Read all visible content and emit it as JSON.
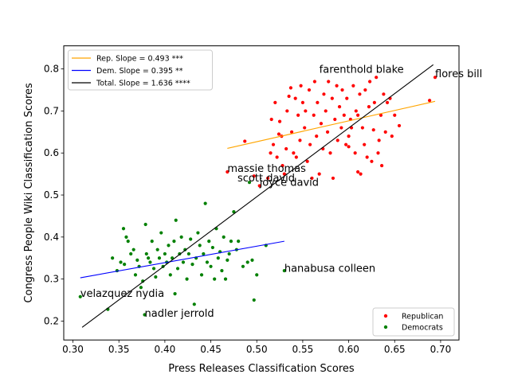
{
  "chart_data": {
    "type": "scatter",
    "title": "",
    "xlabel": "Press Releases Classification Scores",
    "ylabel": "Congress People Wiki Classification Scores",
    "xlim": [
      0.29,
      0.72
    ],
    "ylim": [
      0.155,
      0.855
    ],
    "xticks": [
      0.3,
      0.35,
      0.4,
      0.45,
      0.5,
      0.55,
      0.6,
      0.65,
      0.7
    ],
    "xtick_labels": [
      "0.30",
      "0.35",
      "0.40",
      "0.45",
      "0.50",
      "0.55",
      "0.60",
      "0.65",
      "0.70"
    ],
    "yticks": [
      0.2,
      0.3,
      0.4,
      0.5,
      0.6,
      0.7,
      0.8
    ],
    "ytick_labels": [
      "0.2",
      "0.3",
      "0.4",
      "0.5",
      "0.6",
      "0.7",
      "0.8"
    ],
    "grid": false,
    "series": [
      {
        "name": "Republican",
        "color": "#ff0000",
        "points": [
          [
            0.468,
            0.555
          ],
          [
            0.487,
            0.628
          ],
          [
            0.497,
            0.545
          ],
          [
            0.503,
            0.522
          ],
          [
            0.512,
            0.54
          ],
          [
            0.515,
            0.6
          ],
          [
            0.516,
            0.68
          ],
          [
            0.518,
            0.62
          ],
          [
            0.52,
            0.72
          ],
          [
            0.522,
            0.59
          ],
          [
            0.524,
            0.645
          ],
          [
            0.525,
            0.675
          ],
          [
            0.527,
            0.64
          ],
          [
            0.528,
            0.57
          ],
          [
            0.53,
            0.55
          ],
          [
            0.532,
            0.61
          ],
          [
            0.533,
            0.7
          ],
          [
            0.535,
            0.735
          ],
          [
            0.537,
            0.755
          ],
          [
            0.538,
            0.65
          ],
          [
            0.54,
            0.6
          ],
          [
            0.542,
            0.73
          ],
          [
            0.543,
            0.59
          ],
          [
            0.545,
            0.69
          ],
          [
            0.547,
            0.63
          ],
          [
            0.548,
            0.76
          ],
          [
            0.55,
            0.72
          ],
          [
            0.552,
            0.66
          ],
          [
            0.553,
            0.7
          ],
          [
            0.555,
            0.58
          ],
          [
            0.557,
            0.75
          ],
          [
            0.558,
            0.62
          ],
          [
            0.56,
            0.54
          ],
          [
            0.562,
            0.69
          ],
          [
            0.563,
            0.77
          ],
          [
            0.565,
            0.64
          ],
          [
            0.566,
            0.72
          ],
          [
            0.568,
            0.55
          ],
          [
            0.57,
            0.67
          ],
          [
            0.572,
            0.61
          ],
          [
            0.573,
            0.74
          ],
          [
            0.575,
            0.7
          ],
          [
            0.577,
            0.65
          ],
          [
            0.578,
            0.77
          ],
          [
            0.58,
            0.6
          ],
          [
            0.582,
            0.73
          ],
          [
            0.583,
            0.54
          ],
          [
            0.585,
            0.68
          ],
          [
            0.587,
            0.76
          ],
          [
            0.588,
            0.63
          ],
          [
            0.59,
            0.71
          ],
          [
            0.592,
            0.66
          ],
          [
            0.593,
            0.75
          ],
          [
            0.595,
            0.69
          ],
          [
            0.597,
            0.62
          ],
          [
            0.598,
            0.73
          ],
          [
            0.6,
            0.615
          ],
          [
            0.6,
            0.64
          ],
          [
            0.602,
            0.68
          ],
          [
            0.603,
            0.66
          ],
          [
            0.605,
            0.76
          ],
          [
            0.607,
            0.6
          ],
          [
            0.608,
            0.7
          ],
          [
            0.61,
            0.555
          ],
          [
            0.61,
            0.69
          ],
          [
            0.612,
            0.74
          ],
          [
            0.613,
            0.55
          ],
          [
            0.615,
            0.66
          ],
          [
            0.617,
            0.62
          ],
          [
            0.618,
            0.75
          ],
          [
            0.62,
            0.59
          ],
          [
            0.622,
            0.71
          ],
          [
            0.623,
            0.77
          ],
          [
            0.625,
            0.58
          ],
          [
            0.627,
            0.655
          ],
          [
            0.628,
            0.72
          ],
          [
            0.63,
            0.78
          ],
          [
            0.632,
            0.6
          ],
          [
            0.633,
            0.63
          ],
          [
            0.635,
            0.69
          ],
          [
            0.636,
            0.57
          ],
          [
            0.638,
            0.74
          ],
          [
            0.64,
            0.65
          ],
          [
            0.642,
            0.72
          ],
          [
            0.645,
            0.73
          ],
          [
            0.647,
            0.64
          ],
          [
            0.65,
            0.69
          ],
          [
            0.655,
            0.665
          ],
          [
            0.688,
            0.725
          ],
          [
            0.694,
            0.78
          ]
        ]
      },
      {
        "name": "Democrats",
        "color": "#008000",
        "points": [
          [
            0.308,
            0.258
          ],
          [
            0.338,
            0.228
          ],
          [
            0.343,
            0.35
          ],
          [
            0.348,
            0.32
          ],
          [
            0.352,
            0.34
          ],
          [
            0.355,
            0.42
          ],
          [
            0.356,
            0.335
          ],
          [
            0.358,
            0.4
          ],
          [
            0.36,
            0.39
          ],
          [
            0.363,
            0.36
          ],
          [
            0.366,
            0.37
          ],
          [
            0.368,
            0.31
          ],
          [
            0.37,
            0.345
          ],
          [
            0.372,
            0.33
          ],
          [
            0.374,
            0.28
          ],
          [
            0.376,
            0.295
          ],
          [
            0.378,
            0.215
          ],
          [
            0.379,
            0.43
          ],
          [
            0.38,
            0.36
          ],
          [
            0.382,
            0.35
          ],
          [
            0.384,
            0.34
          ],
          [
            0.386,
            0.39
          ],
          [
            0.388,
            0.325
          ],
          [
            0.39,
            0.305
          ],
          [
            0.392,
            0.37
          ],
          [
            0.394,
            0.35
          ],
          [
            0.396,
            0.41
          ],
          [
            0.398,
            0.33
          ],
          [
            0.4,
            0.36
          ],
          [
            0.402,
            0.34
          ],
          [
            0.404,
            0.38
          ],
          [
            0.406,
            0.31
          ],
          [
            0.408,
            0.35
          ],
          [
            0.41,
            0.39
          ],
          [
            0.411,
            0.265
          ],
          [
            0.412,
            0.44
          ],
          [
            0.414,
            0.325
          ],
          [
            0.416,
            0.36
          ],
          [
            0.418,
            0.4
          ],
          [
            0.42,
            0.34
          ],
          [
            0.422,
            0.37
          ],
          [
            0.424,
            0.3
          ],
          [
            0.426,
            0.36
          ],
          [
            0.428,
            0.395
          ],
          [
            0.43,
            0.335
          ],
          [
            0.432,
            0.24
          ],
          [
            0.434,
            0.35
          ],
          [
            0.436,
            0.41
          ],
          [
            0.438,
            0.38
          ],
          [
            0.44,
            0.31
          ],
          [
            0.442,
            0.36
          ],
          [
            0.444,
            0.48
          ],
          [
            0.446,
            0.34
          ],
          [
            0.448,
            0.39
          ],
          [
            0.45,
            0.33
          ],
          [
            0.452,
            0.375
          ],
          [
            0.454,
            0.3
          ],
          [
            0.456,
            0.42
          ],
          [
            0.458,
            0.35
          ],
          [
            0.46,
            0.365
          ],
          [
            0.462,
            0.32
          ],
          [
            0.464,
            0.4
          ],
          [
            0.466,
            0.3
          ],
          [
            0.468,
            0.345
          ],
          [
            0.47,
            0.36
          ],
          [
            0.472,
            0.39
          ],
          [
            0.475,
            0.46
          ],
          [
            0.478,
            0.37
          ],
          [
            0.48,
            0.39
          ],
          [
            0.485,
            0.33
          ],
          [
            0.49,
            0.34
          ],
          [
            0.492,
            0.53
          ],
          [
            0.495,
            0.345
          ],
          [
            0.497,
            0.25
          ],
          [
            0.5,
            0.31
          ],
          [
            0.51,
            0.38
          ],
          [
            0.53,
            0.32
          ]
        ]
      }
    ],
    "fit_lines": [
      {
        "name": "Rep. Slope = 0.493 ***",
        "color": "#ffa500",
        "x": [
          0.468,
          0.694
        ],
        "y": [
          0.611,
          0.723
        ]
      },
      {
        "name": "Dem. Slope = 0.395 **",
        "color": "#0000ff",
        "x": [
          0.308,
          0.53
        ],
        "y": [
          0.303,
          0.39
        ]
      },
      {
        "name": "Total. Slope = 1.636 ****",
        "color": "#000000",
        "x": [
          0.31,
          0.692
        ],
        "y": [
          0.185,
          0.81
        ]
      }
    ],
    "annotations": [
      {
        "text": "farenthold blake",
        "x": 0.568,
        "y": 0.791
      },
      {
        "text": "flores bill",
        "x": 0.694,
        "y": 0.78
      },
      {
        "text": "massie thomas",
        "x": 0.468,
        "y": 0.555
      },
      {
        "text": "scott david",
        "x": 0.479,
        "y": 0.532
      },
      {
        "text": "joyce david",
        "x": 0.503,
        "y": 0.522
      },
      {
        "text": "hanabusa colleen",
        "x": 0.53,
        "y": 0.317
      },
      {
        "text": "velazquez nydia",
        "x": 0.308,
        "y": 0.258
      },
      {
        "text": "nadler jerrold",
        "x": 0.378,
        "y": 0.21
      }
    ],
    "legends": {
      "lines_legend": "top-left",
      "points_legend": "bottom-right"
    }
  }
}
